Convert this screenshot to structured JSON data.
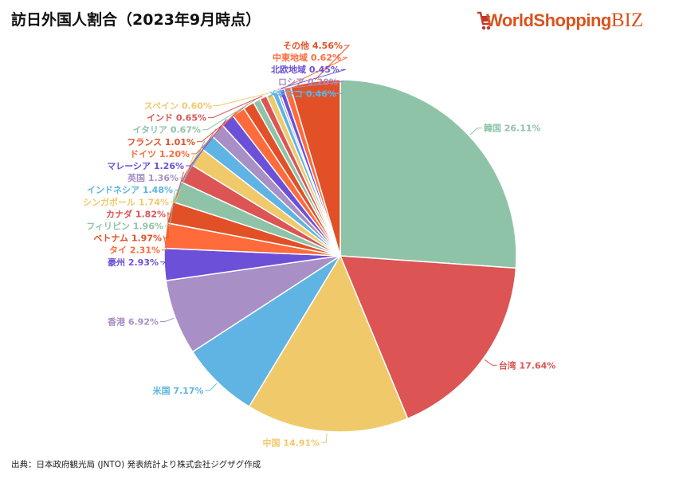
{
  "title": "訪日外国人割合（2023年9月時点）",
  "logo": {
    "main": "WorldShopping",
    "suffix": "BIZ"
  },
  "source": "出典：日本政府観光局 (JNTO) 発表統計より株式会社ジグザグ作成",
  "chart_data": {
    "type": "pie",
    "title": "訪日外国人割合（2023年9月時点）",
    "unit": "%",
    "start": "12 o'clock",
    "direction": "clockwise",
    "slices": [
      {
        "label": "韓国",
        "value": 26.11,
        "color": "#8fc3a8"
      },
      {
        "label": "台湾",
        "value": 17.64,
        "color": "#dc5454"
      },
      {
        "label": "中国",
        "value": 14.91,
        "color": "#f0c96a"
      },
      {
        "label": "米国",
        "value": 7.17,
        "color": "#5fb4e4"
      },
      {
        "label": "香港",
        "value": 6.92,
        "color": "#a88fc6"
      },
      {
        "label": "豪州",
        "value": 2.93,
        "color": "#6d50d8"
      },
      {
        "label": "タイ",
        "value": 2.31,
        "color": "#ff6b3b"
      },
      {
        "label": "ベトナム",
        "value": 1.97,
        "color": "#e25027"
      },
      {
        "label": "フィリピン",
        "value": 1.96,
        "color": "#8fc3a8"
      },
      {
        "label": "カナダ",
        "value": 1.82,
        "color": "#dc5454"
      },
      {
        "label": "シンガポール",
        "value": 1.74,
        "color": "#f0c96a"
      },
      {
        "label": "インドネシア",
        "value": 1.48,
        "color": "#5fb4e4"
      },
      {
        "label": "英国",
        "value": 1.36,
        "color": "#a88fc6"
      },
      {
        "label": "マレーシア",
        "value": 1.26,
        "color": "#6d50d8"
      },
      {
        "label": "ドイツ",
        "value": 1.2,
        "color": "#ff6b3b"
      },
      {
        "label": "フランス",
        "value": 1.01,
        "color": "#e25027"
      },
      {
        "label": "イタリア",
        "value": 0.67,
        "color": "#8fc3a8"
      },
      {
        "label": "インド",
        "value": 0.65,
        "color": "#dc5454"
      },
      {
        "label": "スペイン",
        "value": 0.6,
        "color": "#f0c96a"
      },
      {
        "label": "メキシコ",
        "value": 0.46,
        "color": "#5fb4e4"
      },
      {
        "label": "ロシア",
        "value": 0.2,
        "color": "#a88fc6"
      },
      {
        "label": "北欧地域",
        "value": 0.45,
        "color": "#6d50d8"
      },
      {
        "label": "中東地域",
        "value": 0.62,
        "color": "#ff6b3b"
      },
      {
        "label": "その他",
        "value": 4.56,
        "color": "#e25027"
      }
    ]
  }
}
